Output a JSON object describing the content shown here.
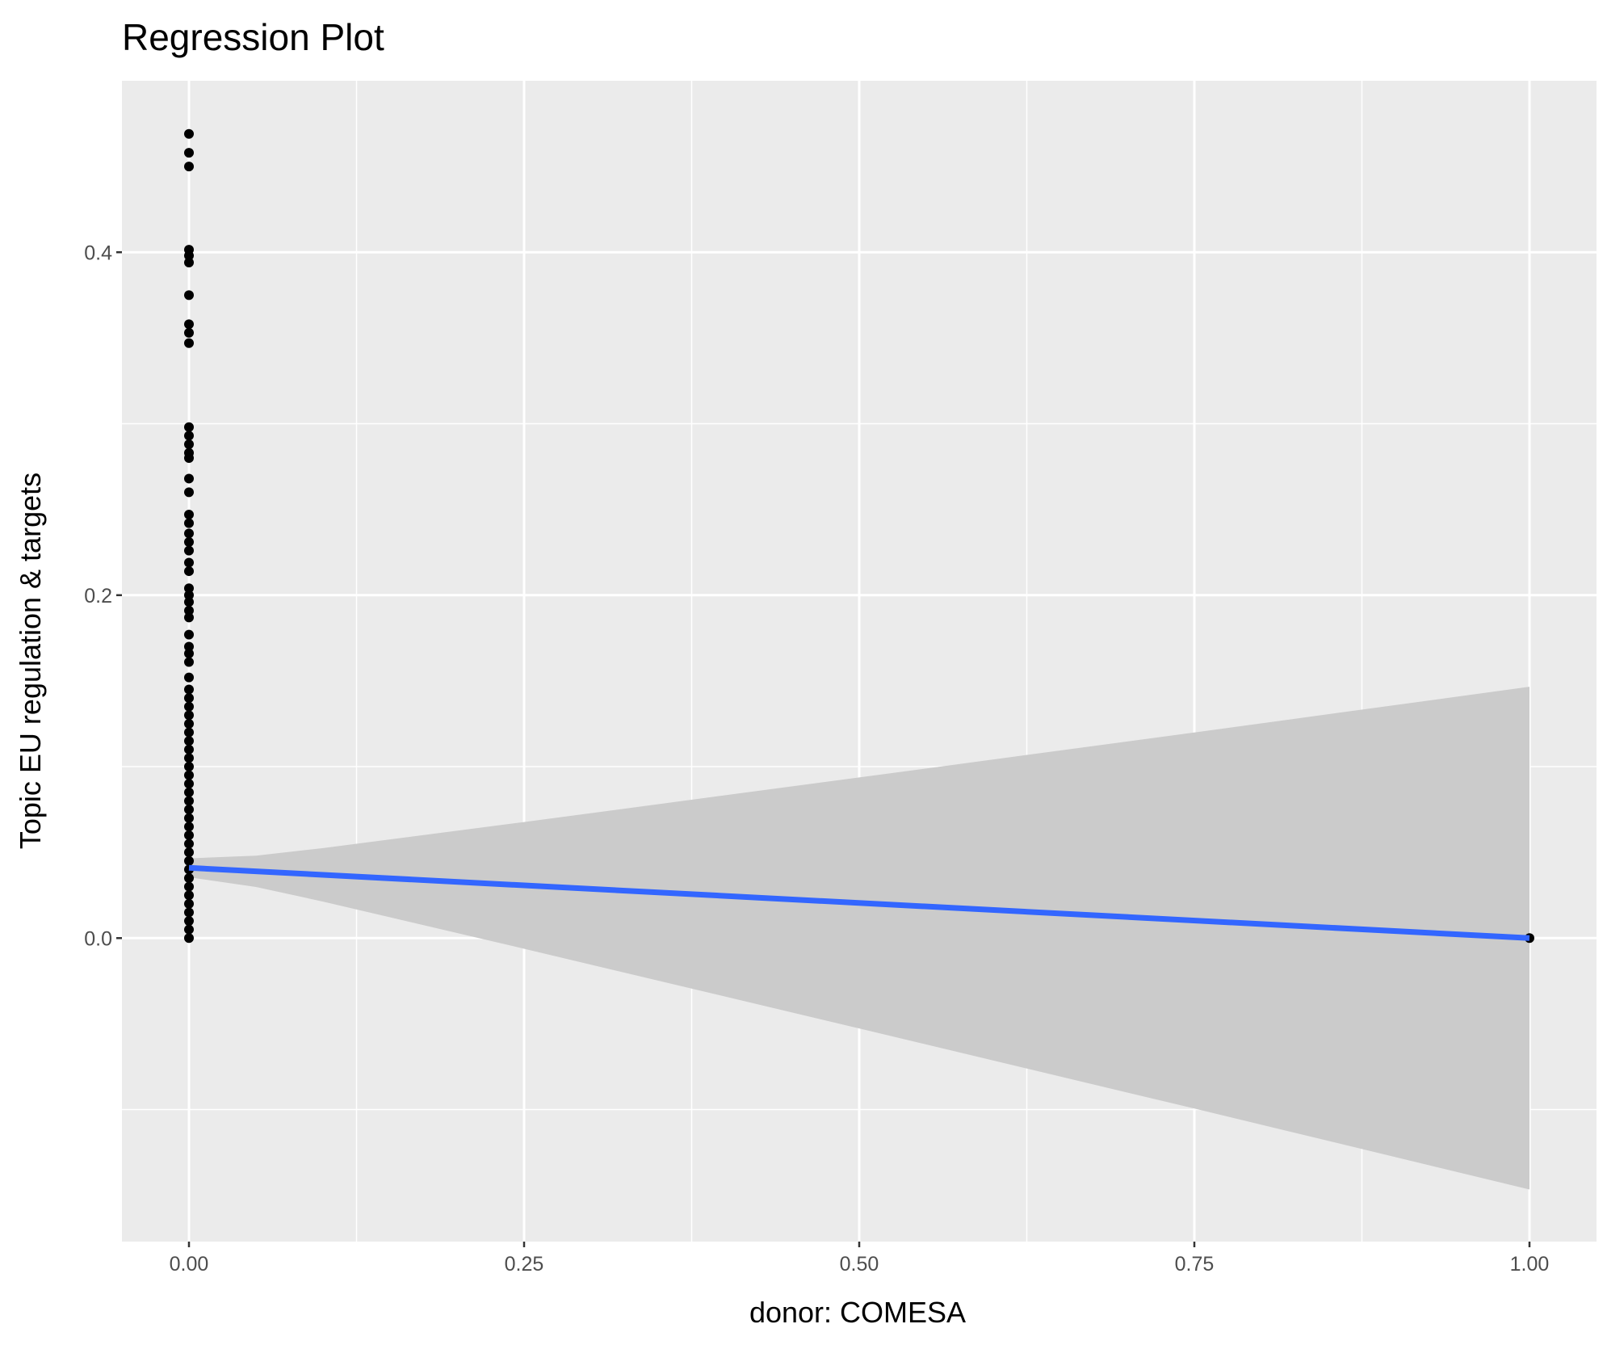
{
  "chart_data": {
    "type": "scatter",
    "title": "Regression Plot",
    "xlabel": "donor: COMESA",
    "ylabel": "Topic EU regulation & targets",
    "xlim": [
      -0.05,
      1.05
    ],
    "ylim": [
      -0.177,
      0.5
    ],
    "grid": true,
    "x_ticks": [
      0,
      0.25,
      0.5,
      0.75,
      1
    ],
    "x_tick_labels": [
      "0.00",
      "0.25",
      "0.50",
      "0.75",
      "1.00"
    ],
    "y_ticks": [
      0,
      0.2,
      0.4
    ],
    "y_tick_labels": [
      "0.0",
      "0.2",
      "0.4"
    ],
    "colors": {
      "panel": "#EBEBEB",
      "grid": "#FFFFFF",
      "points": "#000000",
      "fit_line": "#3366FF",
      "ci_band": "#CBCBCB"
    },
    "points": {
      "x0_values": [
        0.469,
        0.458,
        0.45,
        0.4015,
        0.398,
        0.394,
        0.375,
        0.358,
        0.353,
        0.347,
        0.298,
        0.293,
        0.288,
        0.283,
        0.28,
        0.268,
        0.26,
        0.247,
        0.242,
        0.236,
        0.231,
        0.226,
        0.219,
        0.214,
        0.204,
        0.2,
        0.196,
        0.191,
        0.187,
        0.177,
        0.17,
        0.166,
        0.161,
        0.152,
        0.145,
        0.14,
        0.135,
        0.13,
        0.125,
        0.12,
        0.115,
        0.11,
        0.105,
        0.1,
        0.095,
        0.09,
        0.085,
        0.08,
        0.075,
        0.07,
        0.065,
        0.06,
        0.055,
        0.05,
        0.045,
        0.04,
        0.035,
        0.03,
        0.025,
        0.02,
        0.015,
        0.01,
        0.005,
        0.0
      ],
      "x1_values": [
        0.0
      ]
    },
    "fit": {
      "x": [
        0,
        1
      ],
      "y": [
        0.041,
        0.0
      ]
    },
    "ci": {
      "x": [
        0,
        0.05,
        0.1,
        0.25,
        0.5,
        0.75,
        1
      ],
      "upper": [
        0.0465,
        0.0481,
        0.0525,
        0.0677,
        0.0937,
        0.1199,
        0.1466
      ],
      "lower": [
        0.0355,
        0.0298,
        0.0213,
        -0.0062,
        -0.0527,
        -0.0994,
        -0.1466
      ]
    }
  }
}
